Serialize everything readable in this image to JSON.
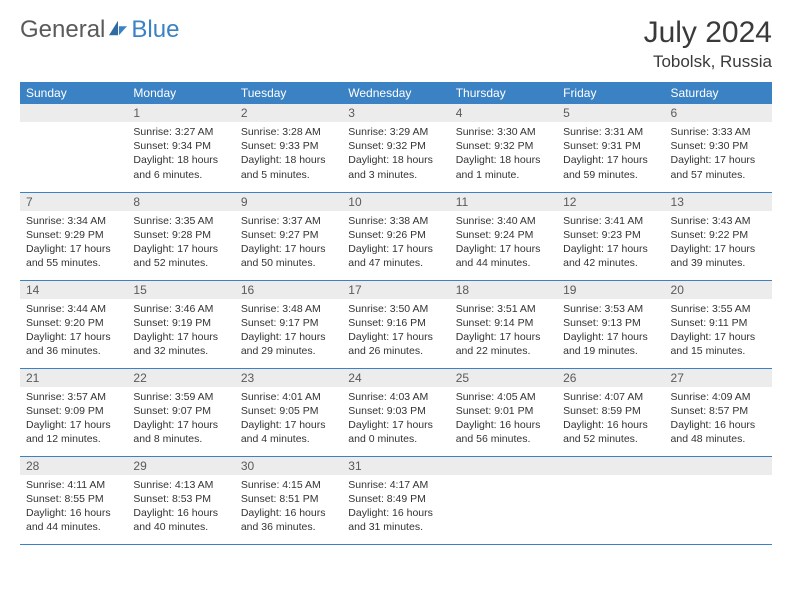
{
  "brand": {
    "part1": "General",
    "part2": "Blue"
  },
  "title": "July 2024",
  "location": "Tobolsk, Russia",
  "colors": {
    "header_bg": "#3b82c4",
    "header_text": "#ffffff",
    "daynum_bg": "#ececec",
    "daynum_text": "#5a5a5a",
    "body_text": "#333333",
    "rule": "#3b82c4",
    "page_bg": "#ffffff"
  },
  "typography": {
    "title_fontsize": 30,
    "location_fontsize": 17,
    "dayheader_fontsize": 12,
    "daynum_fontsize": 12,
    "body_fontsize": 10.5
  },
  "day_headers": [
    "Sunday",
    "Monday",
    "Tuesday",
    "Wednesday",
    "Thursday",
    "Friday",
    "Saturday"
  ],
  "weeks": [
    [
      {
        "num": "",
        "lines": []
      },
      {
        "num": "1",
        "lines": [
          "Sunrise: 3:27 AM",
          "Sunset: 9:34 PM",
          "Daylight: 18 hours and 6 minutes."
        ]
      },
      {
        "num": "2",
        "lines": [
          "Sunrise: 3:28 AM",
          "Sunset: 9:33 PM",
          "Daylight: 18 hours and 5 minutes."
        ]
      },
      {
        "num": "3",
        "lines": [
          "Sunrise: 3:29 AM",
          "Sunset: 9:32 PM",
          "Daylight: 18 hours and 3 minutes."
        ]
      },
      {
        "num": "4",
        "lines": [
          "Sunrise: 3:30 AM",
          "Sunset: 9:32 PM",
          "Daylight: 18 hours and 1 minute."
        ]
      },
      {
        "num": "5",
        "lines": [
          "Sunrise: 3:31 AM",
          "Sunset: 9:31 PM",
          "Daylight: 17 hours and 59 minutes."
        ]
      },
      {
        "num": "6",
        "lines": [
          "Sunrise: 3:33 AM",
          "Sunset: 9:30 PM",
          "Daylight: 17 hours and 57 minutes."
        ]
      }
    ],
    [
      {
        "num": "7",
        "lines": [
          "Sunrise: 3:34 AM",
          "Sunset: 9:29 PM",
          "Daylight: 17 hours and 55 minutes."
        ]
      },
      {
        "num": "8",
        "lines": [
          "Sunrise: 3:35 AM",
          "Sunset: 9:28 PM",
          "Daylight: 17 hours and 52 minutes."
        ]
      },
      {
        "num": "9",
        "lines": [
          "Sunrise: 3:37 AM",
          "Sunset: 9:27 PM",
          "Daylight: 17 hours and 50 minutes."
        ]
      },
      {
        "num": "10",
        "lines": [
          "Sunrise: 3:38 AM",
          "Sunset: 9:26 PM",
          "Daylight: 17 hours and 47 minutes."
        ]
      },
      {
        "num": "11",
        "lines": [
          "Sunrise: 3:40 AM",
          "Sunset: 9:24 PM",
          "Daylight: 17 hours and 44 minutes."
        ]
      },
      {
        "num": "12",
        "lines": [
          "Sunrise: 3:41 AM",
          "Sunset: 9:23 PM",
          "Daylight: 17 hours and 42 minutes."
        ]
      },
      {
        "num": "13",
        "lines": [
          "Sunrise: 3:43 AM",
          "Sunset: 9:22 PM",
          "Daylight: 17 hours and 39 minutes."
        ]
      }
    ],
    [
      {
        "num": "14",
        "lines": [
          "Sunrise: 3:44 AM",
          "Sunset: 9:20 PM",
          "Daylight: 17 hours and 36 minutes."
        ]
      },
      {
        "num": "15",
        "lines": [
          "Sunrise: 3:46 AM",
          "Sunset: 9:19 PM",
          "Daylight: 17 hours and 32 minutes."
        ]
      },
      {
        "num": "16",
        "lines": [
          "Sunrise: 3:48 AM",
          "Sunset: 9:17 PM",
          "Daylight: 17 hours and 29 minutes."
        ]
      },
      {
        "num": "17",
        "lines": [
          "Sunrise: 3:50 AM",
          "Sunset: 9:16 PM",
          "Daylight: 17 hours and 26 minutes."
        ]
      },
      {
        "num": "18",
        "lines": [
          "Sunrise: 3:51 AM",
          "Sunset: 9:14 PM",
          "Daylight: 17 hours and 22 minutes."
        ]
      },
      {
        "num": "19",
        "lines": [
          "Sunrise: 3:53 AM",
          "Sunset: 9:13 PM",
          "Daylight: 17 hours and 19 minutes."
        ]
      },
      {
        "num": "20",
        "lines": [
          "Sunrise: 3:55 AM",
          "Sunset: 9:11 PM",
          "Daylight: 17 hours and 15 minutes."
        ]
      }
    ],
    [
      {
        "num": "21",
        "lines": [
          "Sunrise: 3:57 AM",
          "Sunset: 9:09 PM",
          "Daylight: 17 hours and 12 minutes."
        ]
      },
      {
        "num": "22",
        "lines": [
          "Sunrise: 3:59 AM",
          "Sunset: 9:07 PM",
          "Daylight: 17 hours and 8 minutes."
        ]
      },
      {
        "num": "23",
        "lines": [
          "Sunrise: 4:01 AM",
          "Sunset: 9:05 PM",
          "Daylight: 17 hours and 4 minutes."
        ]
      },
      {
        "num": "24",
        "lines": [
          "Sunrise: 4:03 AM",
          "Sunset: 9:03 PM",
          "Daylight: 17 hours and 0 minutes."
        ]
      },
      {
        "num": "25",
        "lines": [
          "Sunrise: 4:05 AM",
          "Sunset: 9:01 PM",
          "Daylight: 16 hours and 56 minutes."
        ]
      },
      {
        "num": "26",
        "lines": [
          "Sunrise: 4:07 AM",
          "Sunset: 8:59 PM",
          "Daylight: 16 hours and 52 minutes."
        ]
      },
      {
        "num": "27",
        "lines": [
          "Sunrise: 4:09 AM",
          "Sunset: 8:57 PM",
          "Daylight: 16 hours and 48 minutes."
        ]
      }
    ],
    [
      {
        "num": "28",
        "lines": [
          "Sunrise: 4:11 AM",
          "Sunset: 8:55 PM",
          "Daylight: 16 hours and 44 minutes."
        ]
      },
      {
        "num": "29",
        "lines": [
          "Sunrise: 4:13 AM",
          "Sunset: 8:53 PM",
          "Daylight: 16 hours and 40 minutes."
        ]
      },
      {
        "num": "30",
        "lines": [
          "Sunrise: 4:15 AM",
          "Sunset: 8:51 PM",
          "Daylight: 16 hours and 36 minutes."
        ]
      },
      {
        "num": "31",
        "lines": [
          "Sunrise: 4:17 AM",
          "Sunset: 8:49 PM",
          "Daylight: 16 hours and 31 minutes."
        ]
      },
      {
        "num": "",
        "lines": []
      },
      {
        "num": "",
        "lines": []
      },
      {
        "num": "",
        "lines": []
      }
    ]
  ]
}
